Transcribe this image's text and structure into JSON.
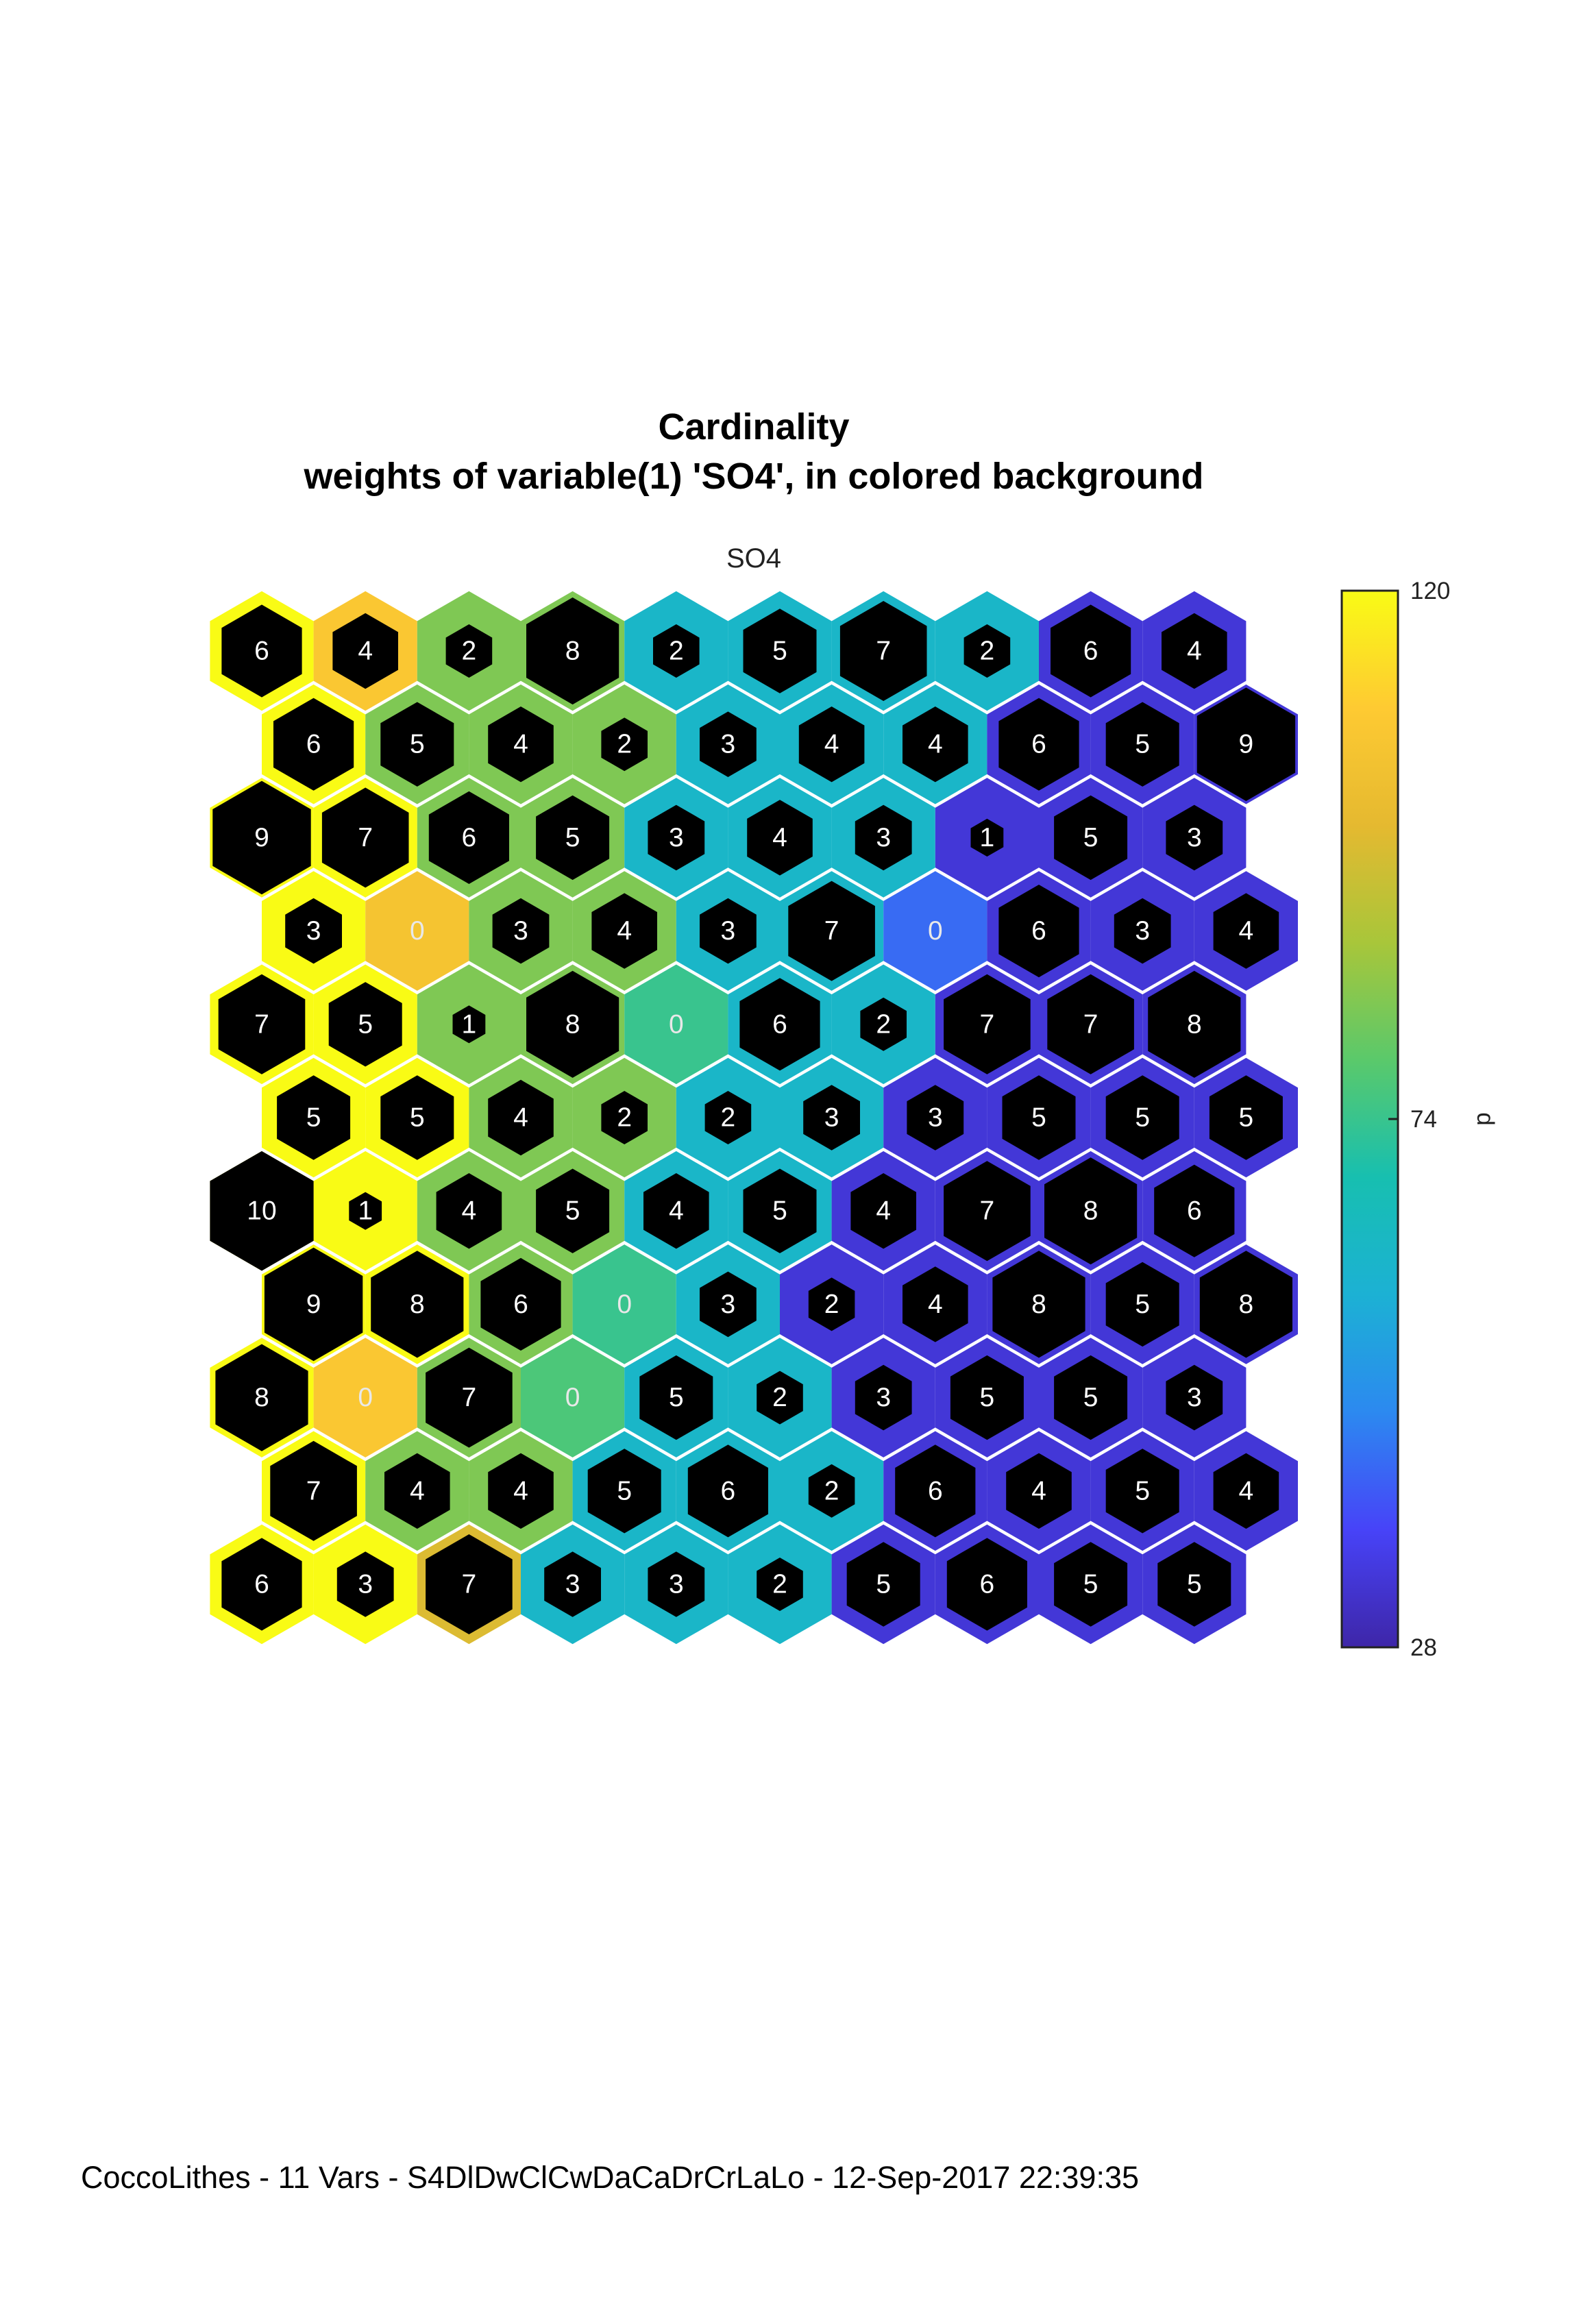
{
  "title": [
    "Cardinality",
    "weights of variable(1) 'SO4', in colored background"
  ],
  "subtitle": "SO4",
  "footer": "CoccoLithes - 11 Vars - S4DlDwClCwDaCaDrCrLaLo - 12-Sep-2017 22:39:35",
  "chart_data": {
    "type": "heatmap",
    "grid": {
      "rows": 11,
      "cols": 10,
      "shape": "hexagonal",
      "odd_row_offset": "right"
    },
    "counts": [
      [
        6,
        4,
        2,
        8,
        2,
        5,
        7,
        2,
        6,
        4
      ],
      [
        6,
        5,
        4,
        2,
        3,
        4,
        4,
        6,
        5,
        9
      ],
      [
        9,
        7,
        6,
        5,
        3,
        4,
        3,
        1,
        5,
        3
      ],
      [
        3,
        0,
        3,
        4,
        3,
        7,
        0,
        6,
        3,
        4
      ],
      [
        7,
        5,
        1,
        8,
        0,
        6,
        2,
        7,
        7,
        8
      ],
      [
        5,
        5,
        4,
        2,
        2,
        3,
        3,
        5,
        5,
        5
      ],
      [
        10,
        1,
        4,
        5,
        4,
        5,
        4,
        7,
        8,
        6
      ],
      [
        9,
        8,
        6,
        0,
        3,
        2,
        4,
        8,
        5,
        8
      ],
      [
        8,
        0,
        7,
        0,
        5,
        2,
        3,
        5,
        5,
        3
      ],
      [
        7,
        4,
        4,
        5,
        6,
        2,
        6,
        4,
        5,
        4
      ],
      [
        6,
        3,
        7,
        3,
        3,
        2,
        5,
        6,
        5,
        5
      ]
    ],
    "weights": [
      [
        120,
        108,
        84,
        84,
        62,
        62,
        62,
        62,
        34,
        34
      ],
      [
        120,
        84,
        84,
        84,
        62,
        62,
        62,
        34,
        34,
        34
      ],
      [
        120,
        120,
        84,
        84,
        62,
        62,
        62,
        34,
        34,
        34
      ],
      [
        120,
        106,
        84,
        84,
        62,
        62,
        44,
        34,
        34,
        34
      ],
      [
        120,
        120,
        84,
        84,
        74,
        62,
        62,
        34,
        34,
        34
      ],
      [
        120,
        120,
        84,
        84,
        62,
        62,
        34,
        34,
        34,
        34
      ],
      [
        120,
        120,
        84,
        84,
        62,
        62,
        34,
        34,
        34,
        34
      ],
      [
        120,
        120,
        84,
        74,
        62,
        34,
        34,
        34,
        34,
        34
      ],
      [
        120,
        108,
        84,
        77,
        62,
        62,
        34,
        34,
        34,
        34
      ],
      [
        120,
        84,
        84,
        62,
        62,
        62,
        34,
        34,
        34,
        34
      ],
      [
        120,
        120,
        98,
        62,
        62,
        62,
        34,
        34,
        34,
        34
      ]
    ],
    "colorbar": {
      "min": 28,
      "max": 120,
      "ticks": [
        {
          "value": 28,
          "label": "28"
        },
        {
          "value": 74,
          "label": "74"
        },
        {
          "value": 120,
          "label": "120"
        }
      ],
      "label": "d",
      "colormap": [
        "#3e26a8",
        "#4743f8",
        "#2c89f0",
        "#1cb1d4",
        "#17bfb0",
        "#5ac96b",
        "#a8c63a",
        "#e5b930",
        "#feca32",
        "#f9fb15"
      ]
    }
  }
}
